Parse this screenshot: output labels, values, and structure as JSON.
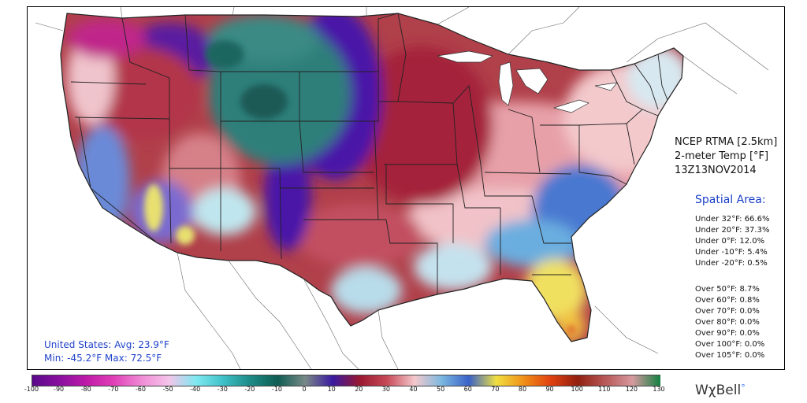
{
  "title": {
    "line1": "NCEP RTMA [2.5km]",
    "line2": "2-meter Temp [°F]",
    "line3": "13Z13NOV2014"
  },
  "spatial_area": {
    "heading": "Spatial Area:",
    "under": [
      "Under 32°F: 66.6%",
      "Under 20°F: 37.3%",
      "Under 0°F: 12.0%",
      "Under -10°F: 5.4%",
      "Under -20°F: 0.5%"
    ],
    "over": [
      "Over 50°F: 8.7%",
      "Over 60°F: 0.8%",
      "Over 70°F: 0.0%",
      "Over 80°F: 0.0%",
      "Over 90°F: 0.0%",
      "Over 100°F: 0.0%",
      "Over 105°F: 0.0%"
    ]
  },
  "summary": {
    "avg": "United States: Avg:  23.9°F",
    "minmax": "Min: -45.2°F Max:  72.5°F"
  },
  "colorbar": {
    "ticks": [
      "-100",
      "-90",
      "-80",
      "-70",
      "-60",
      "-50",
      "-40",
      "-30",
      "-20",
      "-10",
      "0",
      "10",
      "20",
      "30",
      "40",
      "50",
      "60",
      "70",
      "80",
      "90",
      "100",
      "110",
      "120",
      "130"
    ],
    "colors": [
      "#5a0a8a",
      "#8a10a0",
      "#c01aa8",
      "#e040b8",
      "#f08cd6",
      "#f5c4ea",
      "#7ee8f0",
      "#3ec0c8",
      "#1e8a86",
      "#0e5c52",
      "#7a8a88",
      "#3a1aa0",
      "#9a1830",
      "#c84a58",
      "#f4c8cc",
      "#7ab8e0",
      "#3a62c8",
      "#f0e040",
      "#f09018",
      "#e04010",
      "#902010",
      "#b85858",
      "#d89aa0",
      "#128040"
    ]
  },
  "logo": "WχBell",
  "colors": {
    "frigid": "#4a1ab0",
    "cold_teal": "#2f7f7a",
    "cold_red": "#a8283a",
    "mild_pink": "#f0c0c4",
    "cool_blue": "#4a78d0",
    "warm_yellow": "#f0e060"
  }
}
